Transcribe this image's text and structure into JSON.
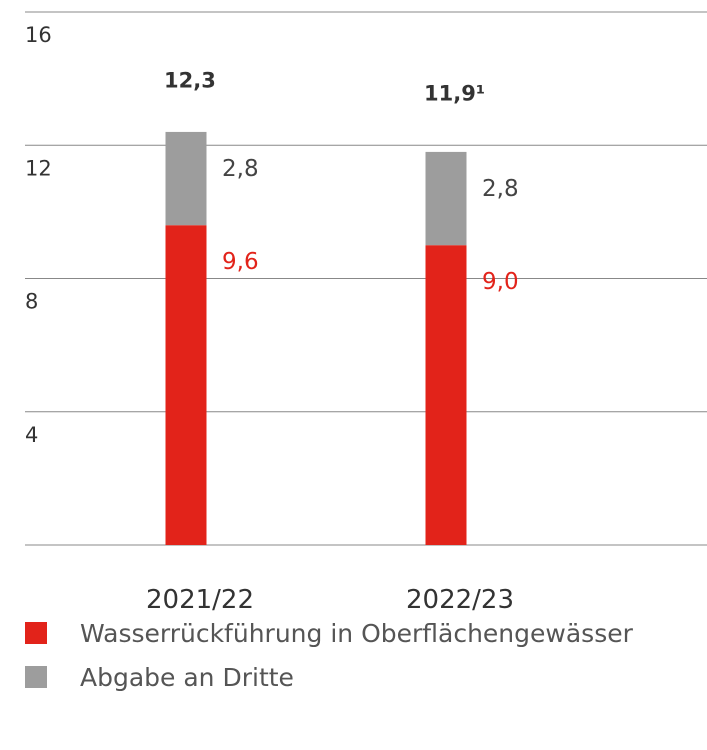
{
  "chart_data": {
    "type": "stacked-bar",
    "categories": [
      "2021/22",
      "2022/23"
    ],
    "series": [
      {
        "name": "Wasserrückführung in Oberflächengewässer",
        "color": "#e2231a",
        "values": [
          9.6,
          9.0
        ],
        "value_labels": [
          "9,6",
          "9,0"
        ]
      },
      {
        "name": "Abgabe an Dritte",
        "color": "#9d9d9d",
        "values": [
          2.8,
          2.8
        ],
        "value_labels": [
          "2,8",
          "2,8"
        ]
      }
    ],
    "totals": [
      12.3,
      11.9
    ],
    "total_labels": [
      "12,3",
      "11,9¹"
    ],
    "ylim": [
      0,
      16
    ],
    "yticks": [
      4,
      8,
      12,
      16
    ],
    "grid": true
  }
}
